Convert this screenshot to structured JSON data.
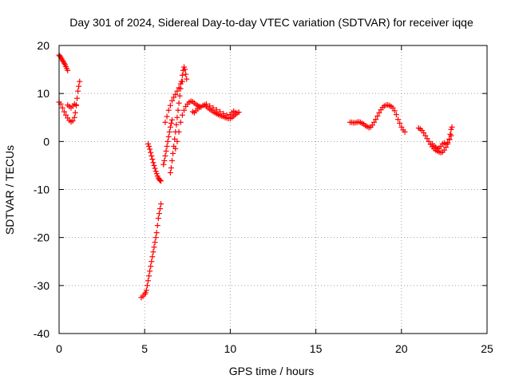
{
  "chart_data": {
    "type": "scatter",
    "title": "Day 301 of 2024, Sidereal Day-to-day VTEC variation (SDTVAR) for receiver iqqe",
    "xlabel": "GPS time / hours",
    "ylabel": "SDTVAR / TECUs",
    "xlim": [
      0,
      25
    ],
    "ylim": [
      -40,
      20
    ],
    "xticks": [
      0,
      5,
      10,
      15,
      20,
      25
    ],
    "yticks": [
      -40,
      -30,
      -20,
      -10,
      0,
      10,
      20
    ],
    "grid": true,
    "marker": "+",
    "series": [
      {
        "name": "SDTVAR",
        "color": "#ff0000",
        "points": [
          [
            0.0,
            18.0
          ],
          [
            0.05,
            17.8
          ],
          [
            0.1,
            17.5
          ],
          [
            0.15,
            17.2
          ],
          [
            0.2,
            16.9
          ],
          [
            0.25,
            16.6
          ],
          [
            0.3,
            16.3
          ],
          [
            0.35,
            16.0
          ],
          [
            0.4,
            15.6
          ],
          [
            0.45,
            15.2
          ],
          [
            0.5,
            14.8
          ],
          [
            0.0,
            8.2
          ],
          [
            0.1,
            7.8
          ],
          [
            0.2,
            7.0
          ],
          [
            0.3,
            6.2
          ],
          [
            0.4,
            5.5
          ],
          [
            0.5,
            4.9
          ],
          [
            0.6,
            4.4
          ],
          [
            0.7,
            4.1
          ],
          [
            0.8,
            4.3
          ],
          [
            0.9,
            5.0
          ],
          [
            0.95,
            6.0
          ],
          [
            1.0,
            7.5
          ],
          [
            1.05,
            9.0
          ],
          [
            1.1,
            10.5
          ],
          [
            1.15,
            11.5
          ],
          [
            1.2,
            12.5
          ],
          [
            0.5,
            7.6
          ],
          [
            0.6,
            7.3
          ],
          [
            0.7,
            7.0
          ],
          [
            0.8,
            7.4
          ],
          [
            0.9,
            7.8
          ],
          [
            1.0,
            7.6
          ],
          [
            4.8,
            -32.5
          ],
          [
            4.9,
            -32.2
          ],
          [
            5.0,
            -31.8
          ],
          [
            5.05,
            -31.5
          ],
          [
            5.1,
            -31.0
          ],
          [
            5.15,
            -30.0
          ],
          [
            5.2,
            -29.0
          ],
          [
            5.25,
            -28.0
          ],
          [
            5.3,
            -27.0
          ],
          [
            5.35,
            -26.0
          ],
          [
            5.4,
            -25.0
          ],
          [
            5.45,
            -24.0
          ],
          [
            5.5,
            -23.0
          ],
          [
            5.55,
            -22.0
          ],
          [
            5.6,
            -21.0
          ],
          [
            5.65,
            -20.0
          ],
          [
            5.7,
            -19.0
          ],
          [
            5.75,
            -17.5
          ],
          [
            5.8,
            -16.0
          ],
          [
            5.85,
            -15.0
          ],
          [
            5.9,
            -14.0
          ],
          [
            5.95,
            -13.0
          ],
          [
            5.2,
            -0.5
          ],
          [
            5.25,
            -1.0
          ],
          [
            5.3,
            -1.6
          ],
          [
            5.35,
            -2.3
          ],
          [
            5.4,
            -3.0
          ],
          [
            5.45,
            -3.7
          ],
          [
            5.5,
            -4.4
          ],
          [
            5.55,
            -5.0
          ],
          [
            5.6,
            -5.6
          ],
          [
            5.65,
            -6.2
          ],
          [
            5.7,
            -6.7
          ],
          [
            5.75,
            -7.2
          ],
          [
            5.8,
            -7.6
          ],
          [
            5.85,
            -7.9
          ],
          [
            5.9,
            -8.1
          ],
          [
            5.95,
            -8.2
          ],
          [
            6.1,
            -4.8
          ],
          [
            6.15,
            -4.0
          ],
          [
            6.2,
            -3.0
          ],
          [
            6.25,
            -2.0
          ],
          [
            6.3,
            -1.0
          ],
          [
            6.35,
            0.0
          ],
          [
            6.4,
            1.0
          ],
          [
            6.45,
            2.0
          ],
          [
            6.5,
            3.0
          ],
          [
            6.55,
            3.8
          ],
          [
            6.6,
            4.5
          ],
          [
            6.5,
            -6.5
          ],
          [
            6.55,
            -5.5
          ],
          [
            6.6,
            -4.0
          ],
          [
            6.65,
            -2.5
          ],
          [
            6.7,
            -1.0
          ],
          [
            6.75,
            0.5
          ],
          [
            6.8,
            2.0
          ],
          [
            6.85,
            3.5
          ],
          [
            6.9,
            5.0
          ],
          [
            6.95,
            6.5
          ],
          [
            7.0,
            8.0
          ],
          [
            7.05,
            9.5
          ],
          [
            7.1,
            11.0
          ],
          [
            7.15,
            12.5
          ],
          [
            7.2,
            13.8
          ],
          [
            7.25,
            14.8
          ],
          [
            7.3,
            15.5
          ],
          [
            7.35,
            15.0
          ],
          [
            7.4,
            14.0
          ],
          [
            7.45,
            13.0
          ],
          [
            6.2,
            4.0
          ],
          [
            6.3,
            5.2
          ],
          [
            6.4,
            6.5
          ],
          [
            6.5,
            7.5
          ],
          [
            6.6,
            8.5
          ],
          [
            6.7,
            9.2
          ],
          [
            6.8,
            9.8
          ],
          [
            6.9,
            10.5
          ],
          [
            7.0,
            11.2
          ],
          [
            7.1,
            12.0
          ],
          [
            7.2,
            12.5
          ],
          [
            6.8,
            -1.5
          ],
          [
            6.9,
            0.0
          ],
          [
            7.0,
            2.0
          ],
          [
            7.1,
            4.0
          ],
          [
            7.2,
            5.5
          ],
          [
            7.3,
            6.5
          ],
          [
            7.4,
            7.3
          ],
          [
            7.5,
            7.8
          ],
          [
            7.6,
            8.2
          ],
          [
            7.7,
            8.4
          ],
          [
            7.8,
            8.3
          ],
          [
            7.9,
            8.0
          ],
          [
            8.0,
            7.7
          ],
          [
            8.1,
            7.5
          ],
          [
            8.2,
            7.3
          ],
          [
            8.3,
            7.2
          ],
          [
            7.8,
            6.2
          ],
          [
            7.9,
            6.0
          ],
          [
            8.0,
            6.4
          ],
          [
            8.1,
            6.8
          ],
          [
            8.2,
            7.1
          ],
          [
            8.4,
            7.5
          ],
          [
            8.5,
            7.6
          ],
          [
            8.6,
            7.3
          ],
          [
            8.7,
            7.0
          ],
          [
            8.8,
            6.7
          ],
          [
            8.9,
            6.5
          ],
          [
            9.0,
            6.2
          ],
          [
            9.1,
            6.0
          ],
          [
            9.2,
            5.8
          ],
          [
            9.3,
            5.6
          ],
          [
            9.4,
            5.4
          ],
          [
            9.5,
            5.3
          ],
          [
            9.6,
            5.2
          ],
          [
            9.7,
            5.0
          ],
          [
            9.8,
            4.9
          ],
          [
            9.9,
            4.8
          ],
          [
            10.0,
            4.8
          ],
          [
            10.1,
            5.0
          ],
          [
            10.2,
            5.3
          ],
          [
            10.3,
            5.6
          ],
          [
            10.4,
            5.9
          ],
          [
            10.5,
            6.1
          ],
          [
            8.6,
            7.8
          ],
          [
            8.8,
            7.4
          ],
          [
            9.0,
            7.0
          ],
          [
            9.2,
            6.6
          ],
          [
            9.4,
            6.2
          ],
          [
            9.6,
            5.8
          ],
          [
            9.8,
            5.5
          ],
          [
            10.0,
            5.6
          ],
          [
            10.1,
            6.0
          ],
          [
            10.2,
            6.3
          ],
          [
            10.3,
            6.0
          ],
          [
            17.0,
            4.0
          ],
          [
            17.1,
            4.0
          ],
          [
            17.2,
            3.9
          ],
          [
            17.3,
            3.9
          ],
          [
            17.4,
            4.0
          ],
          [
            17.5,
            4.1
          ],
          [
            17.6,
            4.0
          ],
          [
            17.7,
            3.8
          ],
          [
            17.8,
            3.6
          ],
          [
            17.9,
            3.3
          ],
          [
            18.0,
            3.1
          ],
          [
            18.1,
            2.9
          ],
          [
            18.2,
            3.0
          ],
          [
            18.3,
            3.4
          ],
          [
            18.4,
            4.0
          ],
          [
            18.5,
            4.6
          ],
          [
            18.6,
            5.3
          ],
          [
            18.7,
            6.0
          ],
          [
            18.8,
            6.6
          ],
          [
            18.9,
            7.1
          ],
          [
            19.0,
            7.4
          ],
          [
            19.1,
            7.6
          ],
          [
            19.2,
            7.6
          ],
          [
            19.3,
            7.5
          ],
          [
            19.4,
            7.3
          ],
          [
            19.5,
            7.0
          ],
          [
            19.6,
            6.4
          ],
          [
            19.7,
            5.6
          ],
          [
            19.8,
            4.6
          ],
          [
            19.9,
            3.8
          ],
          [
            20.0,
            3.0
          ],
          [
            20.1,
            2.4
          ],
          [
            20.2,
            2.0
          ],
          [
            21.0,
            2.8
          ],
          [
            21.1,
            2.6
          ],
          [
            21.2,
            2.3
          ],
          [
            21.3,
            1.8
          ],
          [
            21.4,
            1.2
          ],
          [
            21.5,
            0.6
          ],
          [
            21.6,
            0.0
          ],
          [
            21.7,
            -0.6
          ],
          [
            21.8,
            -1.1
          ],
          [
            21.9,
            -1.5
          ],
          [
            22.0,
            -1.8
          ],
          [
            22.1,
            -2.0
          ],
          [
            22.2,
            -2.2
          ],
          [
            22.3,
            -2.3
          ],
          [
            22.4,
            -2.2
          ],
          [
            22.5,
            -1.8
          ],
          [
            22.6,
            -1.2
          ],
          [
            22.7,
            -0.5
          ],
          [
            22.8,
            0.4
          ],
          [
            22.85,
            1.5
          ],
          [
            22.9,
            2.5
          ],
          [
            22.95,
            3.0
          ],
          [
            21.8,
            -0.5
          ],
          [
            21.9,
            -0.9
          ],
          [
            22.0,
            -1.2
          ],
          [
            22.1,
            -1.5
          ],
          [
            22.2,
            -1.4
          ],
          [
            22.3,
            -1.0
          ],
          [
            22.4,
            -0.5
          ],
          [
            22.5,
            -0.3
          ],
          [
            22.6,
            -0.6
          ],
          [
            22.7,
            -0.2
          ],
          [
            22.8,
            0.5
          ],
          [
            22.9,
            1.2
          ]
        ]
      }
    ]
  }
}
